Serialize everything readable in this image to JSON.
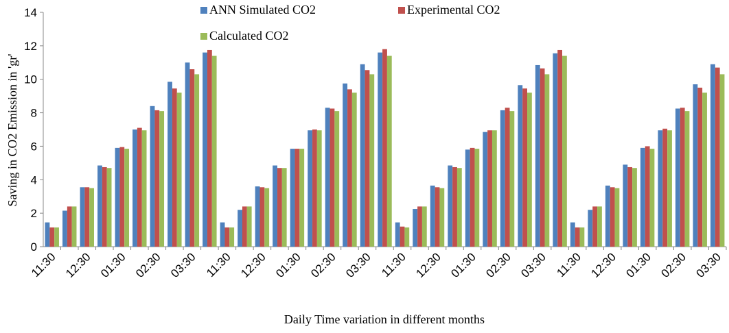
{
  "chart_data": {
    "type": "bar",
    "x_label": "Daily Time variation in different months",
    "y_label": "Saving in CO2 Emission in 'gr'",
    "categories": [
      "11:30",
      null,
      "12:30",
      null,
      "01:30",
      null,
      "02:30",
      null,
      "03:30",
      null,
      "11:30",
      null,
      "12:30",
      null,
      "01:30",
      null,
      "02:30",
      null,
      "03:30",
      null,
      "11:30",
      null,
      "12:30",
      null,
      "01:30",
      null,
      "02:30",
      null,
      "03:30",
      null,
      "11:30",
      null,
      "12:30",
      null,
      "01:30",
      null,
      "02:30",
      null,
      "03:30"
    ],
    "series": [
      {
        "name": "ANN Simulated CO2",
        "color": "#4f81bd",
        "values": [
          1.45,
          2.15,
          3.55,
          4.85,
          5.9,
          7.0,
          8.4,
          9.85,
          11.0,
          11.6,
          1.45,
          2.2,
          3.6,
          4.85,
          5.85,
          6.95,
          8.3,
          9.75,
          10.9,
          11.6,
          1.45,
          2.25,
          3.65,
          4.85,
          5.8,
          6.85,
          8.15,
          9.65,
          10.85,
          11.55,
          1.45,
          2.2,
          3.65,
          4.9,
          5.9,
          6.95,
          8.25,
          9.7,
          10.9
        ]
      },
      {
        "name": "Experimental CO2",
        "color": "#c0504d",
        "values": [
          1.15,
          2.4,
          3.55,
          4.75,
          5.95,
          7.1,
          8.15,
          9.45,
          10.6,
          11.75,
          1.15,
          2.4,
          3.55,
          4.7,
          5.85,
          7.0,
          8.25,
          9.4,
          10.55,
          11.8,
          1.2,
          2.4,
          3.55,
          4.75,
          5.9,
          6.95,
          8.3,
          9.45,
          10.65,
          11.75,
          1.15,
          2.4,
          3.55,
          4.75,
          6.0,
          7.05,
          8.3,
          9.5,
          10.7
        ]
      },
      {
        "name": "Calculated CO2",
        "color": "#9bbb59",
        "values": [
          1.15,
          2.4,
          3.5,
          4.7,
          5.85,
          6.95,
          8.1,
          9.2,
          10.3,
          11.4,
          1.15,
          2.4,
          3.5,
          4.7,
          5.85,
          6.95,
          8.1,
          9.2,
          10.3,
          11.4,
          1.15,
          2.4,
          3.5,
          4.7,
          5.85,
          6.95,
          8.1,
          9.2,
          10.3,
          11.4,
          1.15,
          2.4,
          3.5,
          4.7,
          5.85,
          6.95,
          8.1,
          9.2,
          10.3
        ]
      }
    ],
    "ylim": [
      0,
      14
    ],
    "yticks": [
      0,
      2,
      4,
      6,
      8,
      10,
      12,
      14
    ],
    "grid": false
  }
}
